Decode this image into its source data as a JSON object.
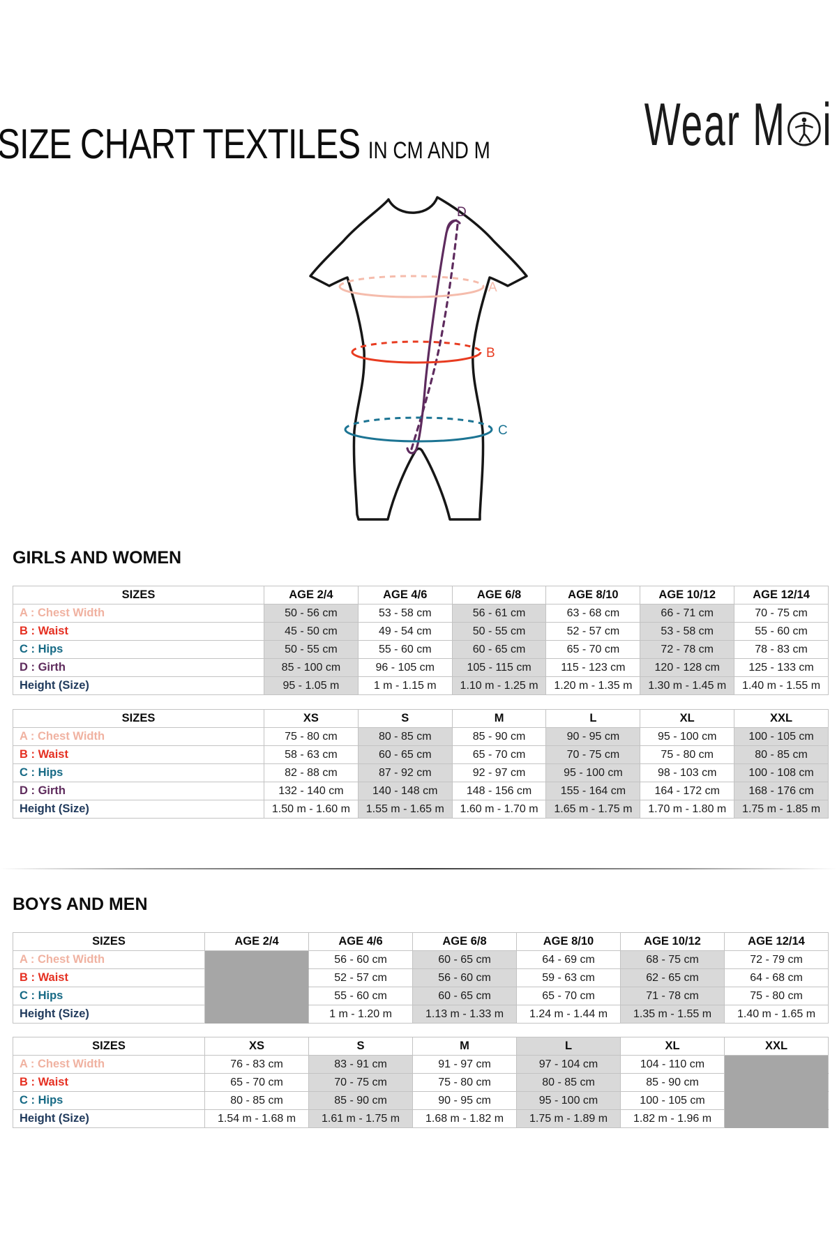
{
  "header": {
    "title": "SIZE CHART TEXTILES",
    "subtitle": "IN CM AND M",
    "logo_name": "Wear Moi",
    "logo_text_1": "Wear M",
    "logo_text_2": "i"
  },
  "diagram": {
    "labels": {
      "a": "A",
      "b": "B",
      "c": "C",
      "d": "D"
    },
    "colors": {
      "outline": "#161616",
      "a": "#f5bcac",
      "b": "#e83b20",
      "c": "#1c7493",
      "d": "#5e2b5e"
    }
  },
  "colors": {
    "row_a": "#f0b2a1",
    "row_b": "#e53022",
    "row_c": "#176a85",
    "row_d": "#5e2b5c",
    "row_height": "#203a5c",
    "shaded": "#d9d9d9",
    "blocked": "#a6a6a6",
    "border": "#c3c3c3"
  },
  "sections": [
    {
      "heading": "GIRLS AND WOMEN",
      "tables": [
        {
          "header": [
            "SIZES",
            "AGE 2/4",
            "AGE 4/6",
            "AGE 6/8",
            "AGE 8/10",
            "AGE 10/12",
            "AGE 12/14"
          ],
          "shaded_cols": [
            0,
            2,
            4
          ],
          "blocked_cols": [],
          "shaded_header_cols": [],
          "rows": [
            {
              "label": "A : Chest Width",
              "color": "row_a",
              "values": [
                "50 - 56 cm",
                "53 - 58 cm",
                "56 - 61 cm",
                "63 - 68 cm",
                "66 - 71 cm",
                "70 - 75 cm"
              ]
            },
            {
              "label": "B : Waist",
              "color": "row_b",
              "values": [
                "45 - 50 cm",
                "49 - 54 cm",
                "50 - 55 cm",
                "52 - 57 cm",
                "53 - 58 cm",
                "55 - 60 cm"
              ]
            },
            {
              "label": "C : Hips",
              "color": "row_c",
              "values": [
                "50 - 55 cm",
                "55 - 60 cm",
                "60 - 65 cm",
                "65 - 70 cm",
                "72 - 78 cm",
                "78 - 83 cm"
              ]
            },
            {
              "label": "D : Girth",
              "color": "row_d",
              "values": [
                "85 - 100 cm",
                "96 - 105 cm",
                "105 - 115 cm",
                "115 - 123 cm",
                "120 - 128 cm",
                "125 - 133 cm"
              ]
            },
            {
              "label": "Height (Size)",
              "color": "row_height",
              "values": [
                "95 - 1.05 m",
                "1 m - 1.15 m",
                "1.10 m - 1.25 m",
                "1.20 m - 1.35 m",
                "1.30 m - 1.45 m",
                "1.40 m - 1.55 m"
              ]
            }
          ]
        },
        {
          "header": [
            "SIZES",
            "XS",
            "S",
            "M",
            "L",
            "XL",
            "XXL"
          ],
          "shaded_cols": [
            1,
            3,
            5
          ],
          "blocked_cols": [],
          "shaded_header_cols": [],
          "rows": [
            {
              "label": "A : Chest Width",
              "color": "row_a",
              "values": [
                "75 - 80 cm",
                "80 - 85 cm",
                "85 - 90 cm",
                "90 - 95 cm",
                "95 - 100 cm",
                "100 - 105 cm"
              ]
            },
            {
              "label": "B : Waist",
              "color": "row_b",
              "values": [
                "58 - 63 cm",
                "60 - 65 cm",
                "65 - 70 cm",
                "70 - 75 cm",
                "75 - 80 cm",
                "80 - 85 cm"
              ]
            },
            {
              "label": "C : Hips",
              "color": "row_c",
              "values": [
                "82 - 88 cm",
                "87 - 92 cm",
                "92 - 97 cm",
                "95 - 100 cm",
                "98 - 103 cm",
                "100 - 108 cm"
              ]
            },
            {
              "label": "D : Girth",
              "color": "row_d",
              "values": [
                "132 - 140 cm",
                "140 - 148 cm",
                "148 - 156 cm",
                "155 - 164 cm",
                "164 - 172 cm",
                "168 - 176 cm"
              ]
            },
            {
              "label": "Height (Size)",
              "color": "row_height",
              "values": [
                "1.50 m - 1.60 m",
                "1.55 m - 1.65 m",
                "1.60 m - 1.70 m",
                "1.65 m - 1.75 m",
                "1.70 m - 1.80 m",
                "1.75 m - 1.85 m"
              ]
            }
          ]
        }
      ]
    },
    {
      "heading": "BOYS AND MEN",
      "tables": [
        {
          "header": [
            "SIZES",
            "AGE 2/4",
            "AGE 4/6",
            "AGE 6/8",
            "AGE 8/10",
            "AGE 10/12",
            "AGE 12/14"
          ],
          "shaded_cols": [
            2,
            4
          ],
          "blocked_cols": [
            0
          ],
          "shaded_header_cols": [],
          "rows": [
            {
              "label": "A : Chest Width",
              "color": "row_a",
              "values": [
                "",
                "56 - 60 cm",
                "60 - 65 cm",
                "64 - 69 cm",
                "68 - 75 cm",
                "72 - 79 cm"
              ]
            },
            {
              "label": "B : Waist",
              "color": "row_b",
              "values": [
                "",
                "52 - 57 cm",
                "56 - 60 cm",
                "59 - 63 cm",
                "62 - 65 cm",
                "64 - 68 cm"
              ]
            },
            {
              "label": "C : Hips",
              "color": "row_c",
              "values": [
                "",
                "55 - 60 cm",
                "60 - 65 cm",
                "65 - 70 cm",
                "71 - 78 cm",
                "75 - 80 cm"
              ]
            },
            {
              "label": "Height (Size)",
              "color": "row_height",
              "values": [
                "",
                "1 m - 1.20 m",
                "1.13 m - 1.33 m",
                "1.24 m - 1.44 m",
                "1.35 m - 1.55 m",
                "1.40 m - 1.65 m"
              ]
            }
          ]
        },
        {
          "header": [
            "SIZES",
            "XS",
            "S",
            "M",
            "L",
            "XL",
            "XXL"
          ],
          "shaded_cols": [
            1,
            3
          ],
          "blocked_cols": [
            5
          ],
          "shaded_header_cols": [
            3
          ],
          "rows": [
            {
              "label": "A : Chest Width",
              "color": "row_a",
              "values": [
                "76 - 83 cm",
                "83 - 91 cm",
                "91 - 97 cm",
                "97 - 104 cm",
                "104 - 110 cm",
                ""
              ]
            },
            {
              "label": "B : Waist",
              "color": "row_b",
              "values": [
                "65 - 70 cm",
                "70 - 75 cm",
                "75 - 80 cm",
                "80 - 85 cm",
                "85 - 90 cm",
                ""
              ]
            },
            {
              "label": "C : Hips",
              "color": "row_c",
              "values": [
                "80 - 85 cm",
                "85 - 90 cm",
                "90 - 95 cm",
                "95 - 100 cm",
                "100 - 105 cm",
                ""
              ]
            },
            {
              "label": "Height (Size)",
              "color": "row_height",
              "values": [
                "1.54 m - 1.68 m",
                "1.61 m - 1.75 m",
                "1.68 m - 1.82 m",
                "1.75 m - 1.89 m",
                "1.82 m - 1.96 m",
                ""
              ]
            }
          ]
        }
      ]
    }
  ]
}
